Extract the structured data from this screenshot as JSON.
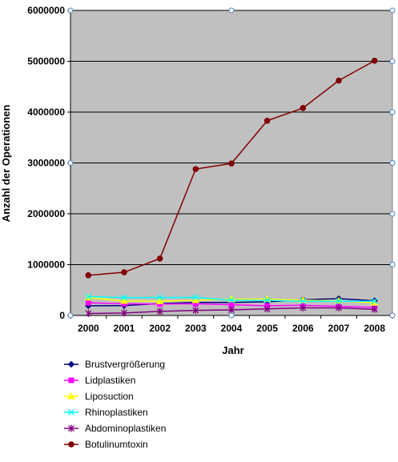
{
  "chart_data": {
    "type": "line",
    "title": "",
    "xlabel": "Jahr",
    "ylabel": "Anzahl der Operationen",
    "ylim": [
      0,
      6000000
    ],
    "yticks": [
      "0",
      "1000000",
      "2000000",
      "3000000",
      "4000000",
      "5000000",
      "6000000"
    ],
    "yticks_values": [
      0,
      1000000,
      2000000,
      3000000,
      4000000,
      5000000,
      6000000
    ],
    "categories": [
      "2000",
      "2001",
      "2002",
      "2003",
      "2004",
      "2005",
      "2006",
      "2007",
      "2008"
    ],
    "grid": true,
    "plot_background": "#c0c0c0",
    "legend_position": "bottom-left",
    "series": [
      {
        "name": "Brustvergrößerung",
        "color": "#000080",
        "marker": "diamond",
        "values": [
          190000,
          195000,
          235000,
          255000,
          255000,
          270000,
          310000,
          330000,
          290000
        ]
      },
      {
        "name": "Lidplastiken",
        "color": "#ff00ff",
        "marker": "square",
        "values": [
          250000,
          230000,
          225000,
          230000,
          210000,
          190000,
          200000,
          180000,
          160000
        ]
      },
      {
        "name": "Liposuction",
        "color": "#ffff00",
        "marker": "triangle",
        "values": [
          350000,
          285000,
          280000,
          300000,
          320000,
          320000,
          300000,
          290000,
          250000
        ]
      },
      {
        "name": "Rhinoplastiken",
        "color": "#00ffff",
        "marker": "x",
        "values": [
          370000,
          350000,
          355000,
          355000,
          300000,
          300000,
          280000,
          280000,
          280000
        ]
      },
      {
        "name": "Abdominoplastiken",
        "color": "#800080",
        "marker": "asterisk",
        "values": [
          40000,
          50000,
          80000,
          100000,
          110000,
          130000,
          150000,
          150000,
          120000
        ]
      },
      {
        "name": "Botulinumtoxin",
        "color": "#800000",
        "marker": "circle",
        "values": [
          790000,
          850000,
          1120000,
          2880000,
          2990000,
          3830000,
          4080000,
          4620000,
          5010000
        ]
      }
    ]
  }
}
